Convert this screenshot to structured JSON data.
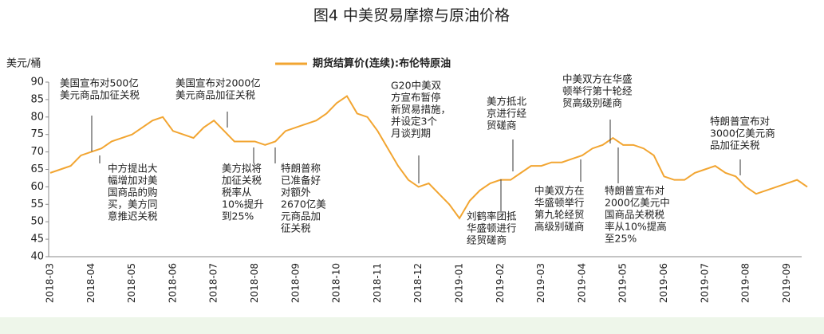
{
  "chart_data": {
    "type": "line",
    "title": "图4 中美贸易摩擦与原油价格",
    "y_label": "美元/桶",
    "categories": [
      "2018-03",
      null,
      null,
      null,
      "2018-04",
      null,
      null,
      null,
      "2018-05",
      null,
      null,
      null,
      "2018-06",
      null,
      null,
      null,
      "2018-07",
      null,
      null,
      null,
      "2018-08",
      null,
      null,
      null,
      "2018-09",
      null,
      null,
      null,
      "2018-10",
      null,
      null,
      null,
      "2018-11",
      null,
      null,
      null,
      "2018-12",
      null,
      null,
      null,
      "2019-01",
      null,
      null,
      null,
      "2019-02",
      null,
      null,
      null,
      "2019-03",
      null,
      null,
      null,
      "2019-04",
      null,
      null,
      null,
      "2019-05",
      null,
      null,
      null,
      "2019-06",
      null,
      null,
      null,
      "2019-07",
      null,
      null,
      null,
      "2019-08",
      null,
      null,
      null,
      "2019-09",
      null,
      null
    ],
    "series": [
      {
        "name": "期货结算价(连续):布伦特原油",
        "color": "#f2a531",
        "values": [
          64,
          65,
          66,
          69,
          70,
          71,
          73,
          74,
          75,
          77,
          79,
          80,
          76,
          75,
          74,
          77,
          79,
          76,
          73,
          73,
          73,
          72,
          73,
          76,
          77,
          78,
          79,
          81,
          84,
          86,
          81,
          80,
          76,
          71,
          66,
          62,
          60,
          61,
          58,
          55,
          51,
          56,
          59,
          61,
          62,
          62,
          64,
          66,
          66,
          67,
          67,
          68,
          69,
          71,
          72,
          74,
          72,
          72,
          71,
          69,
          63,
          62,
          62,
          64,
          65,
          66,
          64,
          63,
          60,
          58,
          59,
          60,
          61,
          62,
          60
        ]
      }
    ],
    "ylim": [
      40,
      90
    ],
    "yticks": [
      40,
      45,
      50,
      55,
      60,
      65,
      70,
      75,
      80,
      85,
      90
    ],
    "legend": "top",
    "annotations": [
      {
        "lines": [
          "美国宣布对500亿",
          "美元商品加征关税"
        ]
      },
      {
        "lines": [
          "美国宣布对2000亿",
          "美元商品加征关税"
        ]
      },
      {
        "lines": [
          "中方提出大",
          "幅增加对美",
          "国商品的购",
          "买，美方同",
          "意推迟关税"
        ]
      },
      {
        "lines": [
          "美方拟将",
          "加征关税",
          "税率从",
          "10%提升",
          "到25%"
        ]
      },
      {
        "lines": [
          "特朗普称",
          "已准备好",
          "对额外",
          "2670亿美",
          "元商品加",
          "征关税"
        ]
      },
      {
        "lines": [
          "G20中美双",
          "方宣布暂停",
          "新贸易措施，",
          "并设定3个",
          "月谈判期"
        ]
      },
      {
        "lines": [
          "美方抵北",
          "京进行经",
          "贸磋商"
        ]
      },
      {
        "lines": [
          "刘鹤率团抵",
          "华盛顿进行",
          "经贸磋商"
        ]
      },
      {
        "lines": [
          "中美双方在",
          "华盛顿举行",
          "第九轮经贸",
          "高级别磋商"
        ]
      },
      {
        "lines": [
          "中美双方在华盛",
          "顿举行第十轮经",
          "贸高级别磋商"
        ]
      },
      {
        "lines": [
          "特朗普宣布对",
          "2000亿美元中",
          "国商品关税税",
          "率从10%提高",
          "至25%"
        ]
      },
      {
        "lines": [
          "特朗普宣布对",
          "3000亿美元商",
          "品加征关税"
        ]
      }
    ]
  }
}
